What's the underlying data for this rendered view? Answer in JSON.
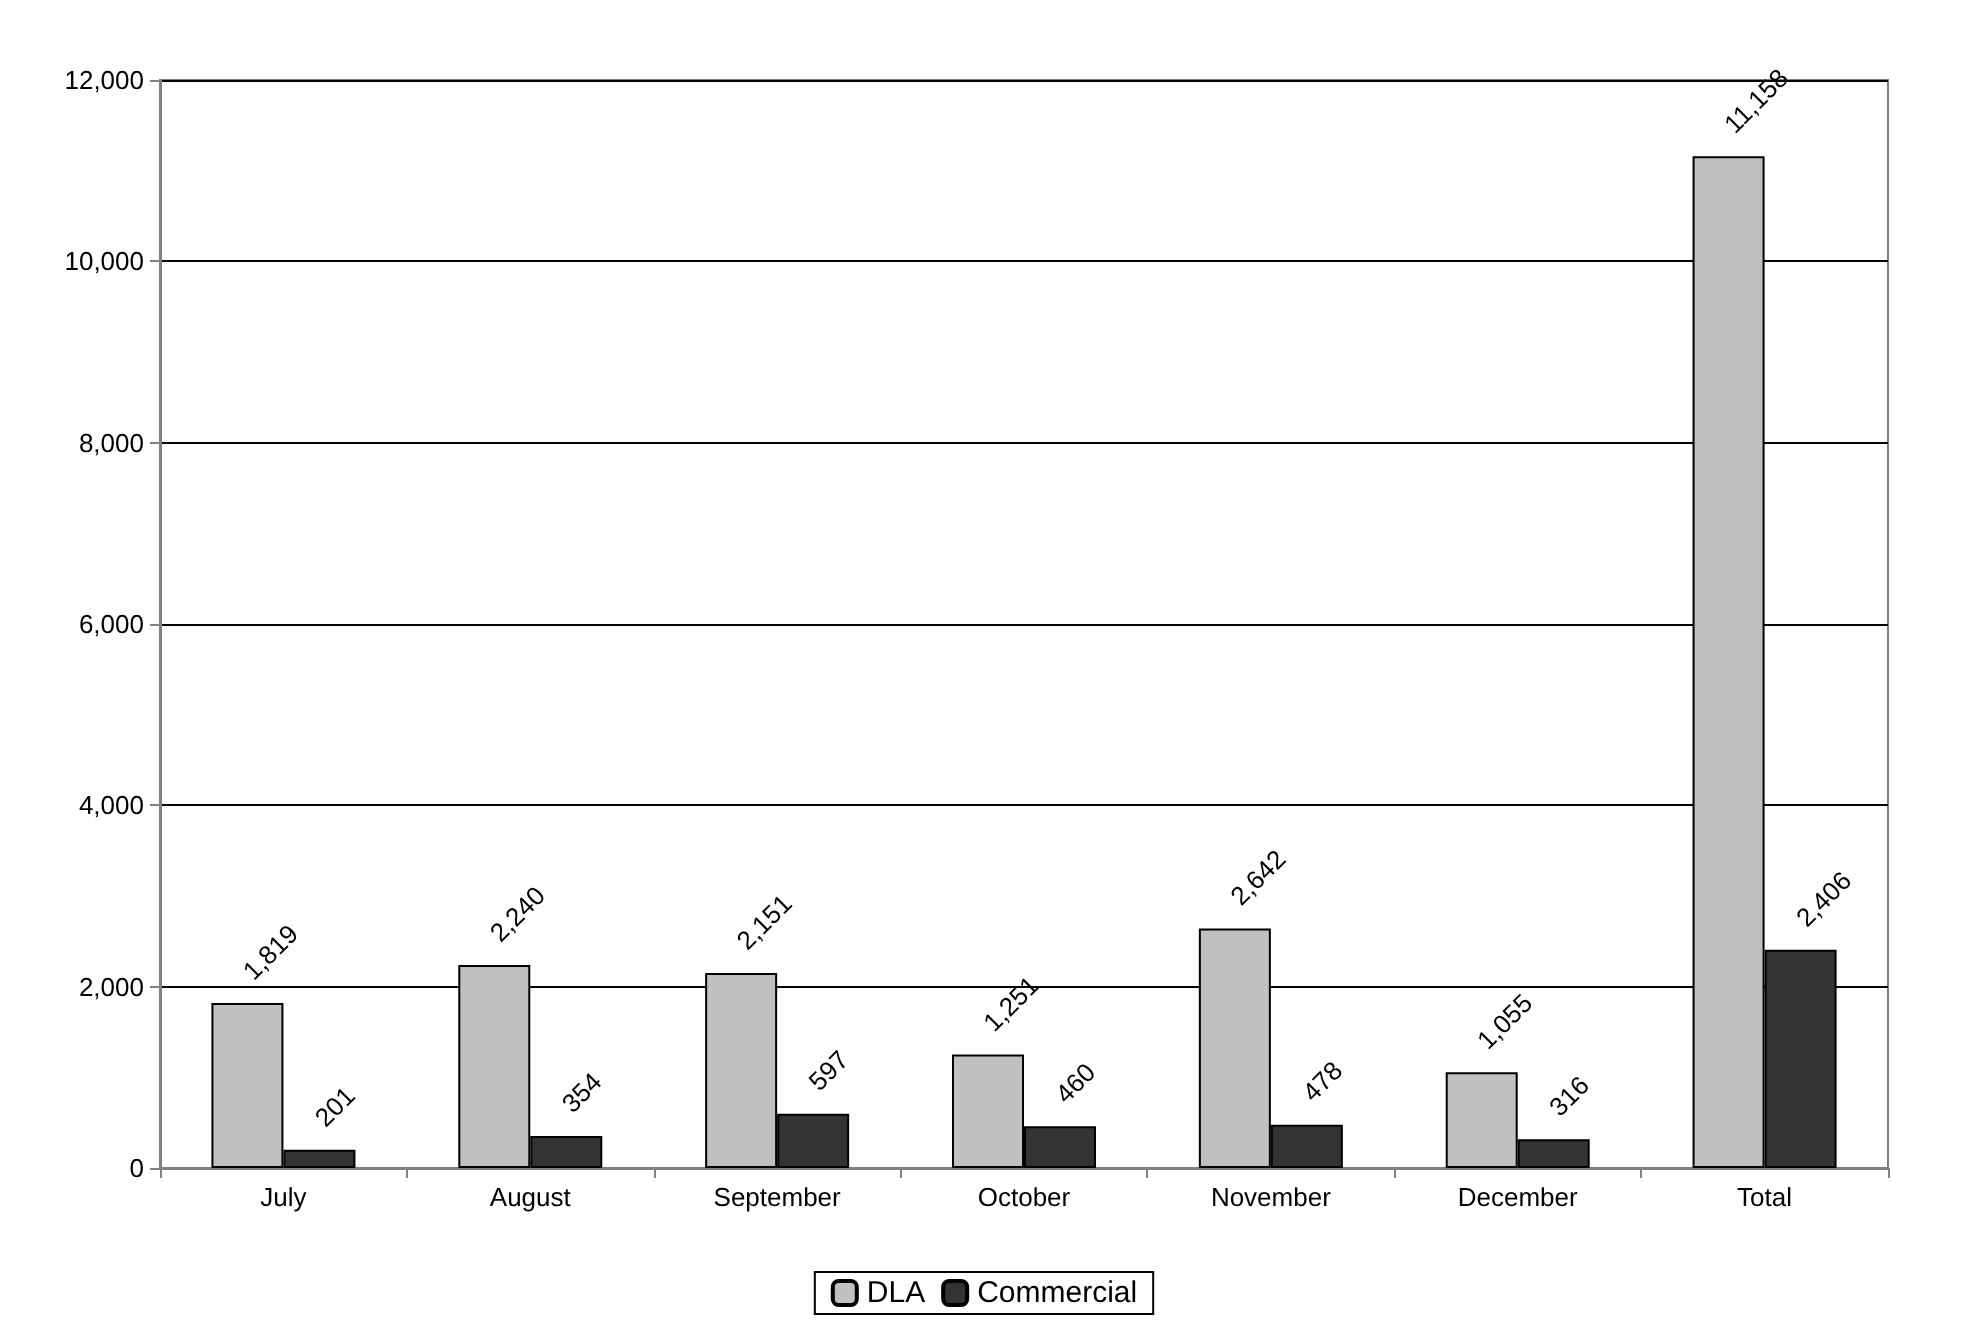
{
  "chart_data": {
    "type": "bar",
    "categories": [
      "July",
      "August",
      "September",
      "October",
      "November",
      "December",
      "Total"
    ],
    "series": [
      {
        "name": "DLA",
        "color": "#c0c0c0",
        "values": [
          1819,
          2240,
          2151,
          1251,
          2642,
          1055,
          11158
        ],
        "value_labels": [
          "1,819",
          "2,240",
          "2,151",
          "1,251",
          "2,642",
          "1,055",
          "11,158"
        ]
      },
      {
        "name": "Commercial",
        "color": "#333333",
        "values": [
          201,
          354,
          597,
          460,
          478,
          316,
          2406
        ],
        "value_labels": [
          "201",
          "354",
          "597",
          "460",
          "478",
          "316",
          "2,406"
        ]
      }
    ],
    "ylim": [
      0,
      12000
    ],
    "yticks": [
      {
        "value": 0,
        "label": "0"
      },
      {
        "value": 2000,
        "label": "2,000"
      },
      {
        "value": 4000,
        "label": "4,000"
      },
      {
        "value": 6000,
        "label": "6,000"
      },
      {
        "value": 8000,
        "label": "8,000"
      },
      {
        "value": 10000,
        "label": "10,000"
      },
      {
        "value": 12000,
        "label": "12,000"
      }
    ],
    "grid": "y",
    "legend": "bottom"
  }
}
